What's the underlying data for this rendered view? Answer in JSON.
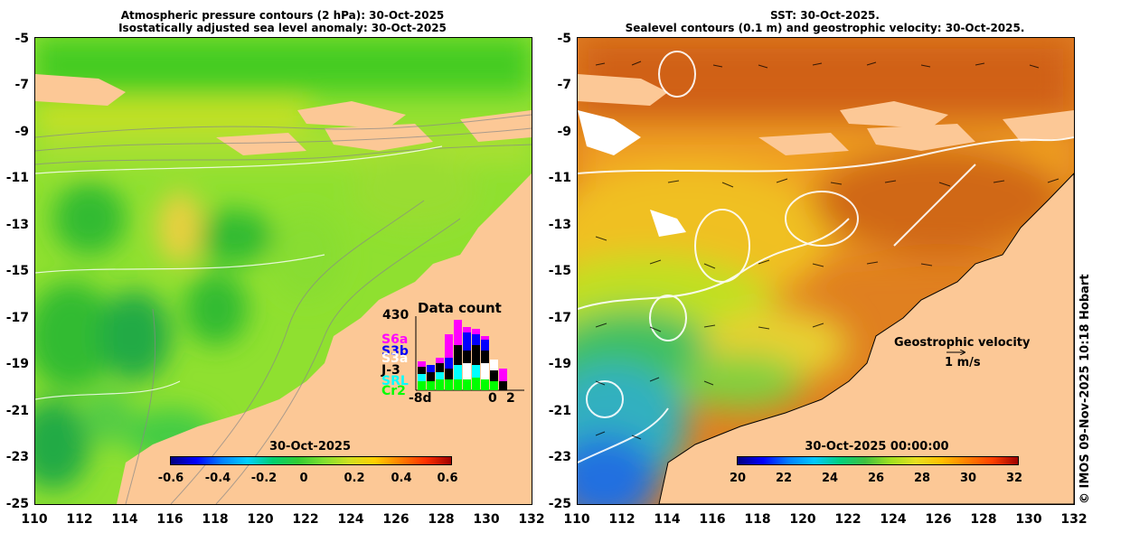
{
  "left_panel": {
    "title_line1": "Atmospheric pressure contours (2 hPa): 30-Oct-2025",
    "title_line2": "Isostatically adjusted sea level anomaly: 30-Oct-2025",
    "colorbar_title": "30-Oct-2025",
    "colorbar_ticks": [
      "-0.6",
      "-0.4",
      "-0.2",
      "0",
      "0.2",
      "0.4",
      "0.6"
    ],
    "data_count": {
      "title": "Data count",
      "max_label": "430",
      "satellites": [
        "S6a",
        "S3b",
        "S3a",
        "J-3",
        "SRL",
        "Cr2"
      ],
      "satellite_colors": [
        "#ff00ff",
        "#0000ff",
        "#ffffff",
        "#000000",
        "#00ffff",
        "#00ff00"
      ],
      "x_start": "-8d",
      "x_end_0": "0",
      "x_end_2": "2"
    }
  },
  "right_panel": {
    "title_line1": "SST: 30-Oct-2025.",
    "title_line2": "Sealevel contours (0.1 m) and geostrophic velocity: 30-Oct-2025.",
    "colorbar_title": "30-Oct-2025 00:00:00",
    "colorbar_ticks": [
      "20",
      "22",
      "24",
      "26",
      "28",
      "30",
      "32"
    ],
    "legend_title": "Geostrophic velocity",
    "legend_scale": "1 m/s"
  },
  "y_ticks": [
    "-5",
    "-7",
    "-9",
    "-11",
    "-13",
    "-15",
    "-17",
    "-19",
    "-21",
    "-23",
    "-25"
  ],
  "x_ticks": [
    "110",
    "112",
    "114",
    "116",
    "118",
    "120",
    "122",
    "124",
    "126",
    "128",
    "130",
    "132"
  ],
  "credit": "© IMOS 09-Nov-2025 10:18 Hobart",
  "colors": {
    "land": "#fcc896",
    "sla_zero": "#66dd22",
    "sst_warm": "#e07010"
  }
}
